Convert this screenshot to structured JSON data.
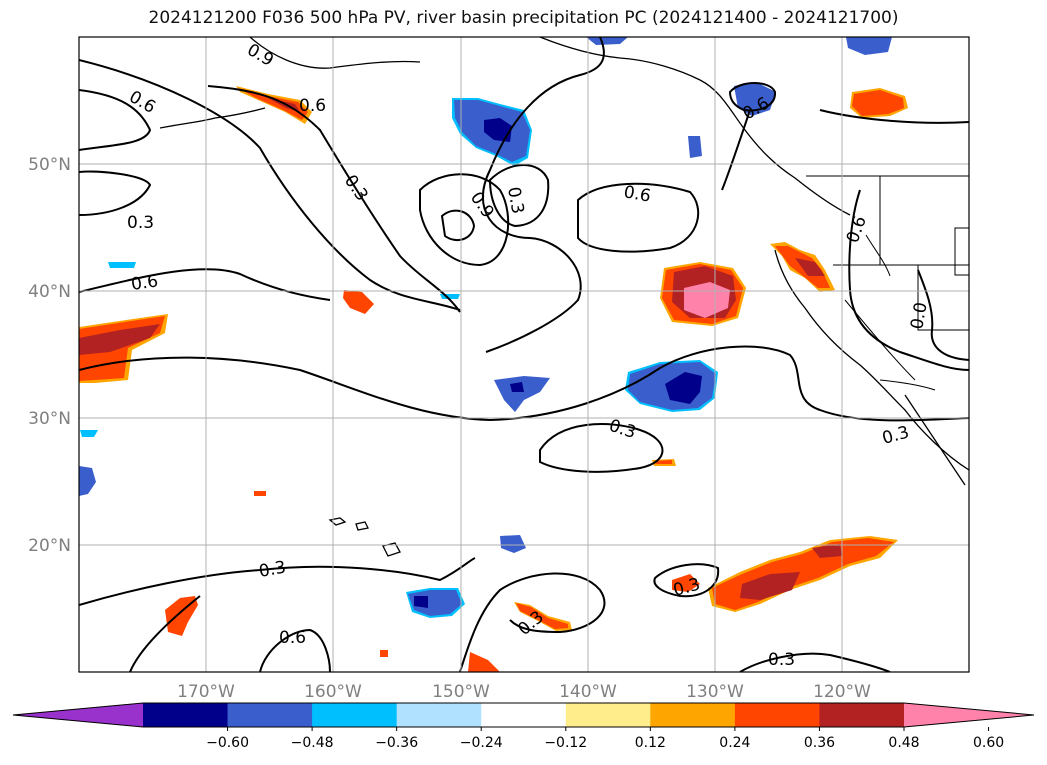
{
  "title": "2024121200 F036 500 hPa PV, river basin precipitation PC (2024121400 - 2024121700)",
  "latitude_labels": [
    "50°N",
    "40°N",
    "30°N",
    "20°N"
  ],
  "longitude_labels": [
    "170°W",
    "160°W",
    "150°W",
    "140°W",
    "130°W",
    "120°W"
  ],
  "contour_labels": [
    "0.9",
    "0.6",
    "0.6",
    "0.3",
    "0.3",
    "0.6",
    "0.9",
    "0.3",
    "0.6",
    "0.6",
    "0.6",
    "0.3",
    "0.0",
    "0.3",
    "0.3",
    "0.6",
    "0.3",
    "0.3",
    "0.3"
  ],
  "colorbar": {
    "tick_labels": [
      "−0.60",
      "−0.48",
      "−0.36",
      "−0.24",
      "−0.12",
      "0.12",
      "0.24",
      "0.36",
      "0.48",
      "0.60"
    ],
    "colors": [
      "#9932cc",
      "#00008b",
      "#3a5fcd",
      "#00bfff",
      "#b0e2ff",
      "#ffffff",
      "#ffec8b",
      "#ffa500",
      "#ff4500",
      "#b22222",
      "#ff82ab"
    ]
  },
  "map": {
    "lat_range": [
      10,
      60
    ],
    "lon_range": [
      -180,
      -110
    ],
    "gridlines": true,
    "field": "500 hPa PV contours with precipitation PC shading"
  }
}
